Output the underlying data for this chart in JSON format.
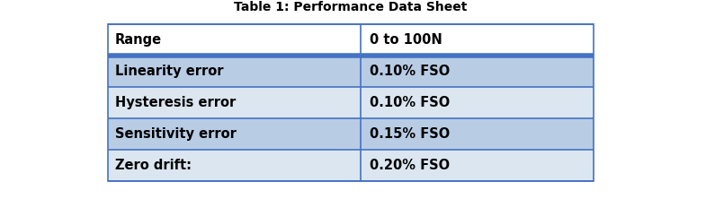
{
  "title": "Table 1: Performance Data Sheet",
  "title_fontsize": 10,
  "title_fontweight": "bold",
  "col1_header": "Range",
  "col2_header": "0 to 100N",
  "rows": [
    [
      "Linearity error",
      "0.10% FSO"
    ],
    [
      "Hysteresis error",
      "0.10% FSO"
    ],
    [
      "Sensitivity error",
      "0.15% FSO"
    ],
    [
      "Zero drift:",
      "0.20% FSO"
    ]
  ],
  "row_colors": [
    "#b8cce4",
    "#dce6f1",
    "#b8cce4",
    "#dce6f1"
  ],
  "header_row_color": "#ffffff",
  "header_separator_color": "#4472c4",
  "border_color": "#4472c4",
  "text_color": "#000000",
  "bg_color": "#ffffff",
  "font_size": 10.5,
  "font_weight": "bold",
  "fig_width": 7.85,
  "fig_height": 2.22,
  "dpi": 100
}
